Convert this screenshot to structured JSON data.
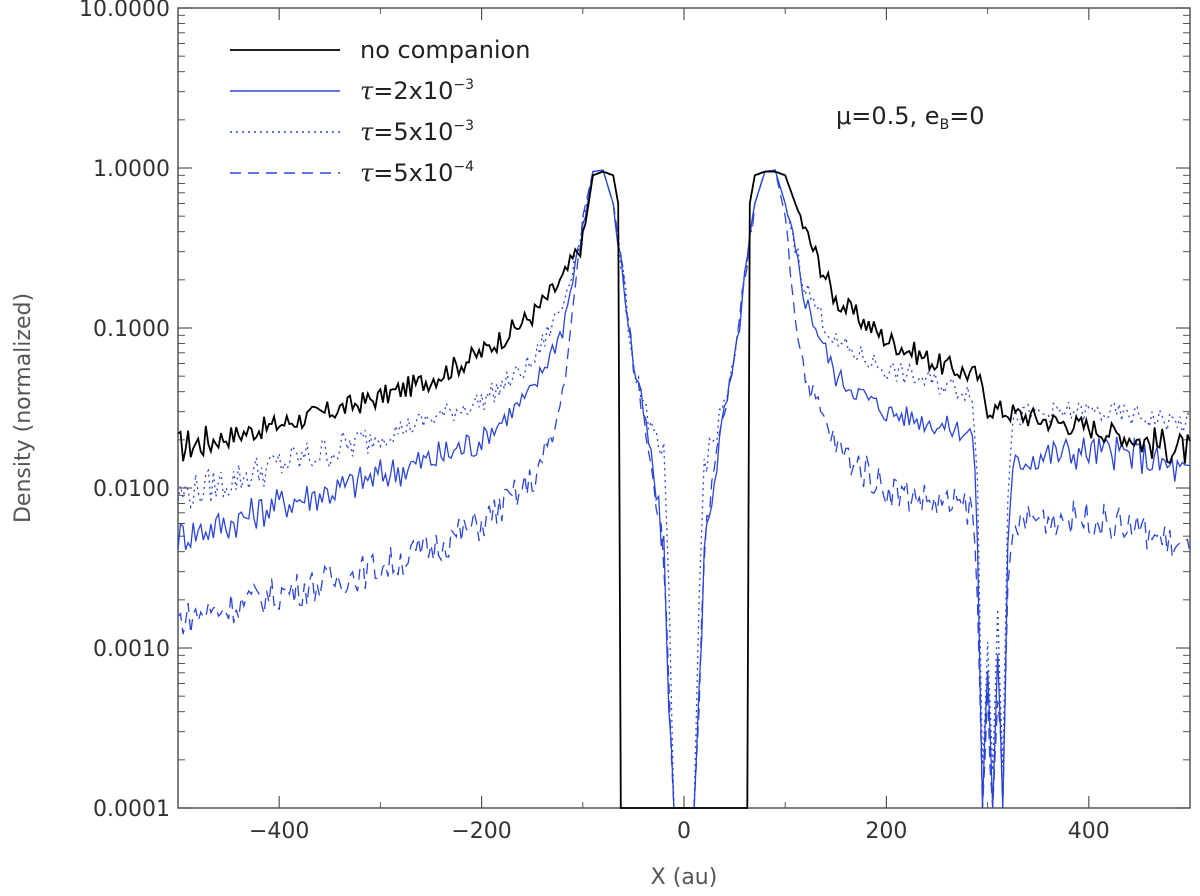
{
  "chart_data": {
    "type": "line",
    "title": "",
    "xlabel": "X (au)",
    "ylabel": "Density (normalized)",
    "xlim": [
      -500,
      500
    ],
    "ylim": [
      0.0001,
      10
    ],
    "yscale": "log",
    "xticks": [
      -400,
      -200,
      0,
      200,
      400
    ],
    "xtick_labels": [
      "−400",
      "−200",
      "0",
      "200",
      "400"
    ],
    "yticks": [
      0.0001,
      0.001,
      0.01,
      0.1,
      1,
      10
    ],
    "ytick_labels": [
      "0.0001",
      "0.0010",
      "0.0100",
      "0.1000",
      "1.0000",
      "10.0000"
    ],
    "annotation": "μ=0.5, e",
    "annotation_sub": "B",
    "annotation_tail": "=0",
    "legend_position": "top-left",
    "series": [
      {
        "name": "no companion",
        "legend_prefix": "",
        "legend_base": "no companion",
        "legend_exp": "",
        "color": "#000000",
        "style": "solid",
        "x": [
          -500,
          -450,
          -400,
          -350,
          -300,
          -250,
          -200,
          -150,
          -120,
          -100,
          -90,
          -80,
          -70,
          -65,
          -64,
          64,
          65,
          70,
          80,
          90,
          100,
          120,
          150,
          200,
          250,
          290,
          300,
          350,
          400,
          450,
          500
        ],
        "y": [
          0.018,
          0.021,
          0.025,
          0.03,
          0.037,
          0.048,
          0.07,
          0.12,
          0.2,
          0.35,
          0.9,
          0.95,
          0.9,
          0.6,
          0.0001,
          0.0001,
          0.6,
          0.9,
          0.95,
          0.95,
          0.9,
          0.4,
          0.15,
          0.085,
          0.06,
          0.05,
          0.032,
          0.027,
          0.024,
          0.02,
          0.017
        ]
      },
      {
        "name": "τ=2x10⁻³",
        "legend_prefix": "τ",
        "legend_base": "=2x10",
        "legend_exp": "−3",
        "color": "#2a44d8",
        "style": "solid",
        "x": [
          -500,
          -450,
          -400,
          -350,
          -300,
          -250,
          -200,
          -150,
          -120,
          -100,
          -90,
          -80,
          -70,
          -60,
          -50,
          -40,
          -30,
          -20,
          -15,
          -10,
          -5,
          5,
          10,
          15,
          20,
          30,
          40,
          50,
          60,
          70,
          80,
          90,
          100,
          120,
          150,
          200,
          250,
          285,
          290,
          295,
          300,
          305,
          310,
          315,
          320,
          325,
          330,
          350,
          400,
          450,
          500
        ],
        "y": [
          0.005,
          0.006,
          0.008,
          0.0095,
          0.012,
          0.015,
          0.02,
          0.04,
          0.1,
          0.4,
          0.95,
          0.97,
          0.6,
          0.2,
          0.06,
          0.03,
          0.012,
          0.004,
          0.0005,
          0.0001,
          0.0001,
          0.0001,
          0.0001,
          0.0005,
          0.004,
          0.012,
          0.03,
          0.06,
          0.2,
          0.6,
          0.95,
          0.97,
          0.6,
          0.15,
          0.05,
          0.03,
          0.025,
          0.022,
          0.005,
          0.0001,
          0.0008,
          0.0001,
          0.001,
          0.0001,
          0.004,
          0.012,
          0.015,
          0.016,
          0.017,
          0.016,
          0.012
        ]
      },
      {
        "name": "τ=5x10⁻³",
        "legend_prefix": "τ",
        "legend_base": "=5x10",
        "legend_exp": "−3",
        "color": "#2a44d8",
        "style": "dotted",
        "x": [
          -500,
          -450,
          -400,
          -350,
          -300,
          -250,
          -200,
          -150,
          -120,
          -100,
          -90,
          -80,
          -70,
          -60,
          -50,
          -40,
          -30,
          -20,
          -15,
          -10,
          -5,
          5,
          10,
          15,
          20,
          30,
          40,
          50,
          60,
          70,
          80,
          90,
          100,
          120,
          150,
          200,
          250,
          285,
          290,
          295,
          300,
          305,
          310,
          315,
          320,
          325,
          330,
          350,
          400,
          450,
          500
        ],
        "y": [
          0.009,
          0.011,
          0.014,
          0.017,
          0.021,
          0.027,
          0.035,
          0.06,
          0.14,
          0.45,
          0.95,
          0.97,
          0.6,
          0.2,
          0.06,
          0.035,
          0.02,
          0.015,
          0.002,
          0.0001,
          0.0001,
          0.0001,
          0.0001,
          0.002,
          0.015,
          0.02,
          0.035,
          0.06,
          0.2,
          0.6,
          0.95,
          0.97,
          0.6,
          0.18,
          0.08,
          0.055,
          0.045,
          0.04,
          0.01,
          0.0002,
          0.001,
          0.0002,
          0.002,
          0.0002,
          0.01,
          0.025,
          0.028,
          0.029,
          0.03,
          0.028,
          0.025
        ]
      },
      {
        "name": "τ=5x10⁻⁴",
        "legend_prefix": "τ",
        "legend_base": "=5x10",
        "legend_exp": "−4",
        "color": "#2a44d8",
        "style": "dashed",
        "x": [
          -500,
          -450,
          -400,
          -350,
          -300,
          -250,
          -200,
          -150,
          -130,
          -120,
          -110,
          -100,
          -90,
          -80,
          -70,
          -60,
          -50,
          -40,
          -30,
          -20,
          -15,
          -10,
          -5,
          5,
          10,
          15,
          20,
          30,
          40,
          50,
          60,
          70,
          80,
          90,
          100,
          110,
          120,
          150,
          200,
          250,
          285,
          290,
          295,
          300,
          305,
          310,
          315,
          320,
          325,
          330,
          350,
          400,
          450,
          500
        ],
        "y": [
          0.0015,
          0.0018,
          0.0022,
          0.0026,
          0.0032,
          0.0042,
          0.006,
          0.011,
          0.02,
          0.04,
          0.12,
          0.5,
          0.95,
          0.97,
          0.6,
          0.2,
          0.06,
          0.03,
          0.012,
          0.004,
          0.0005,
          0.0001,
          0.0001,
          0.0001,
          0.0001,
          0.0005,
          0.004,
          0.012,
          0.03,
          0.06,
          0.2,
          0.6,
          0.95,
          0.97,
          0.5,
          0.12,
          0.05,
          0.018,
          0.01,
          0.008,
          0.0075,
          0.002,
          0.0001,
          0.0005,
          0.0001,
          0.0006,
          0.0001,
          0.002,
          0.005,
          0.006,
          0.0065,
          0.0065,
          0.0055,
          0.004
        ]
      }
    ]
  }
}
